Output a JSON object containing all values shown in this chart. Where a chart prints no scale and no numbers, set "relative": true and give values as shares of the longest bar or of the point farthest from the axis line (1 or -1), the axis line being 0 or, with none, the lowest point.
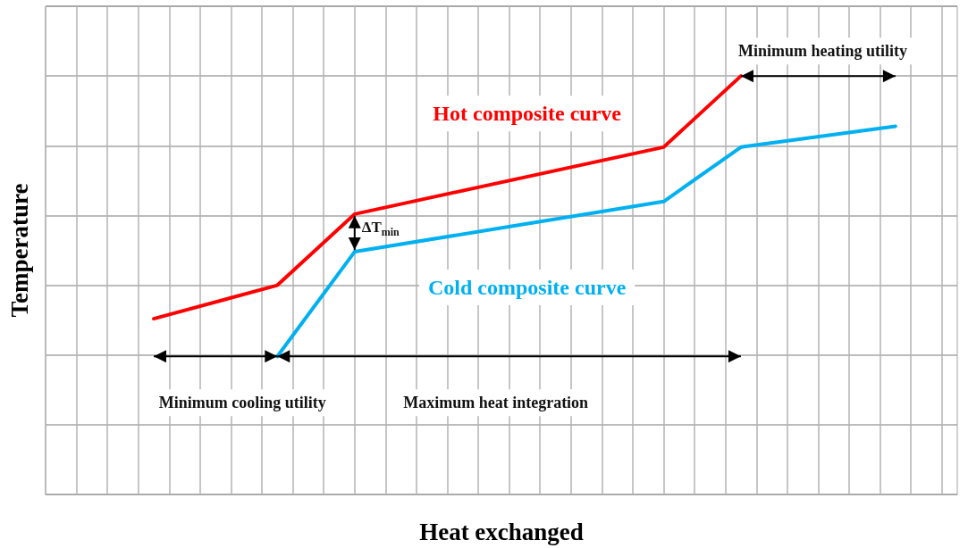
{
  "chart_data": {
    "type": "line",
    "relative": true,
    "xlabel": "Heat exchanged",
    "ylabel": "Temperature",
    "grid": true,
    "legend": false,
    "marker": "none",
    "line_style": "solid",
    "categories": [
      null,
      null,
      null,
      null,
      null,
      null,
      null,
      null,
      null,
      null,
      null,
      null,
      null,
      null,
      null,
      null,
      null,
      null,
      null,
      null,
      null,
      null,
      null,
      null,
      null,
      null,
      null,
      null,
      null,
      null,
      null,
      null,
      null,
      null,
      null,
      null,
      null,
      null,
      null,
      null,
      null,
      null,
      null,
      null,
      null,
      null,
      null,
      null,
      null,
      null,
      null,
      null,
      null,
      null,
      null,
      null,
      null,
      null,
      null,
      null
    ],
    "series": [
      {
        "name": "Hot composite curve",
        "color": "#ff0000",
        "values": [
          null,
          null,
          null,
          null,
          null,
          null,
          null,
          0.42,
          null,
          null,
          null,
          null,
          null,
          null,
          null,
          0.5,
          null,
          null,
          null,
          null,
          0.67,
          null,
          null,
          null,
          null,
          null,
          null,
          null,
          null,
          null,
          null,
          null,
          null,
          null,
          null,
          null,
          null,
          null,
          null,
          null,
          0.83,
          null,
          null,
          null,
          null,
          1,
          null,
          null,
          null,
          null,
          null,
          null,
          null,
          null,
          null,
          null,
          null,
          null,
          null,
          null
        ]
      },
      {
        "name": "Cold composite curve",
        "color": "#00b0f0",
        "values": [
          null,
          null,
          null,
          null,
          null,
          null,
          null,
          null,
          null,
          null,
          null,
          null,
          null,
          null,
          null,
          0.33,
          null,
          null,
          null,
          null,
          0.58,
          null,
          null,
          null,
          null,
          null,
          null,
          null,
          null,
          null,
          null,
          null,
          null,
          null,
          null,
          null,
          null,
          null,
          null,
          null,
          0.7,
          null,
          null,
          null,
          null,
          0.83,
          null,
          null,
          null,
          null,
          null,
          null,
          null,
          null,
          null,
          0.88,
          null,
          null,
          null,
          null
        ]
      }
    ],
    "annotations": [
      "Minimum cooling utility",
      "Maximum heat integration",
      "Minimum heating utility",
      "ΔT$_{min}$"
    ]
  }
}
